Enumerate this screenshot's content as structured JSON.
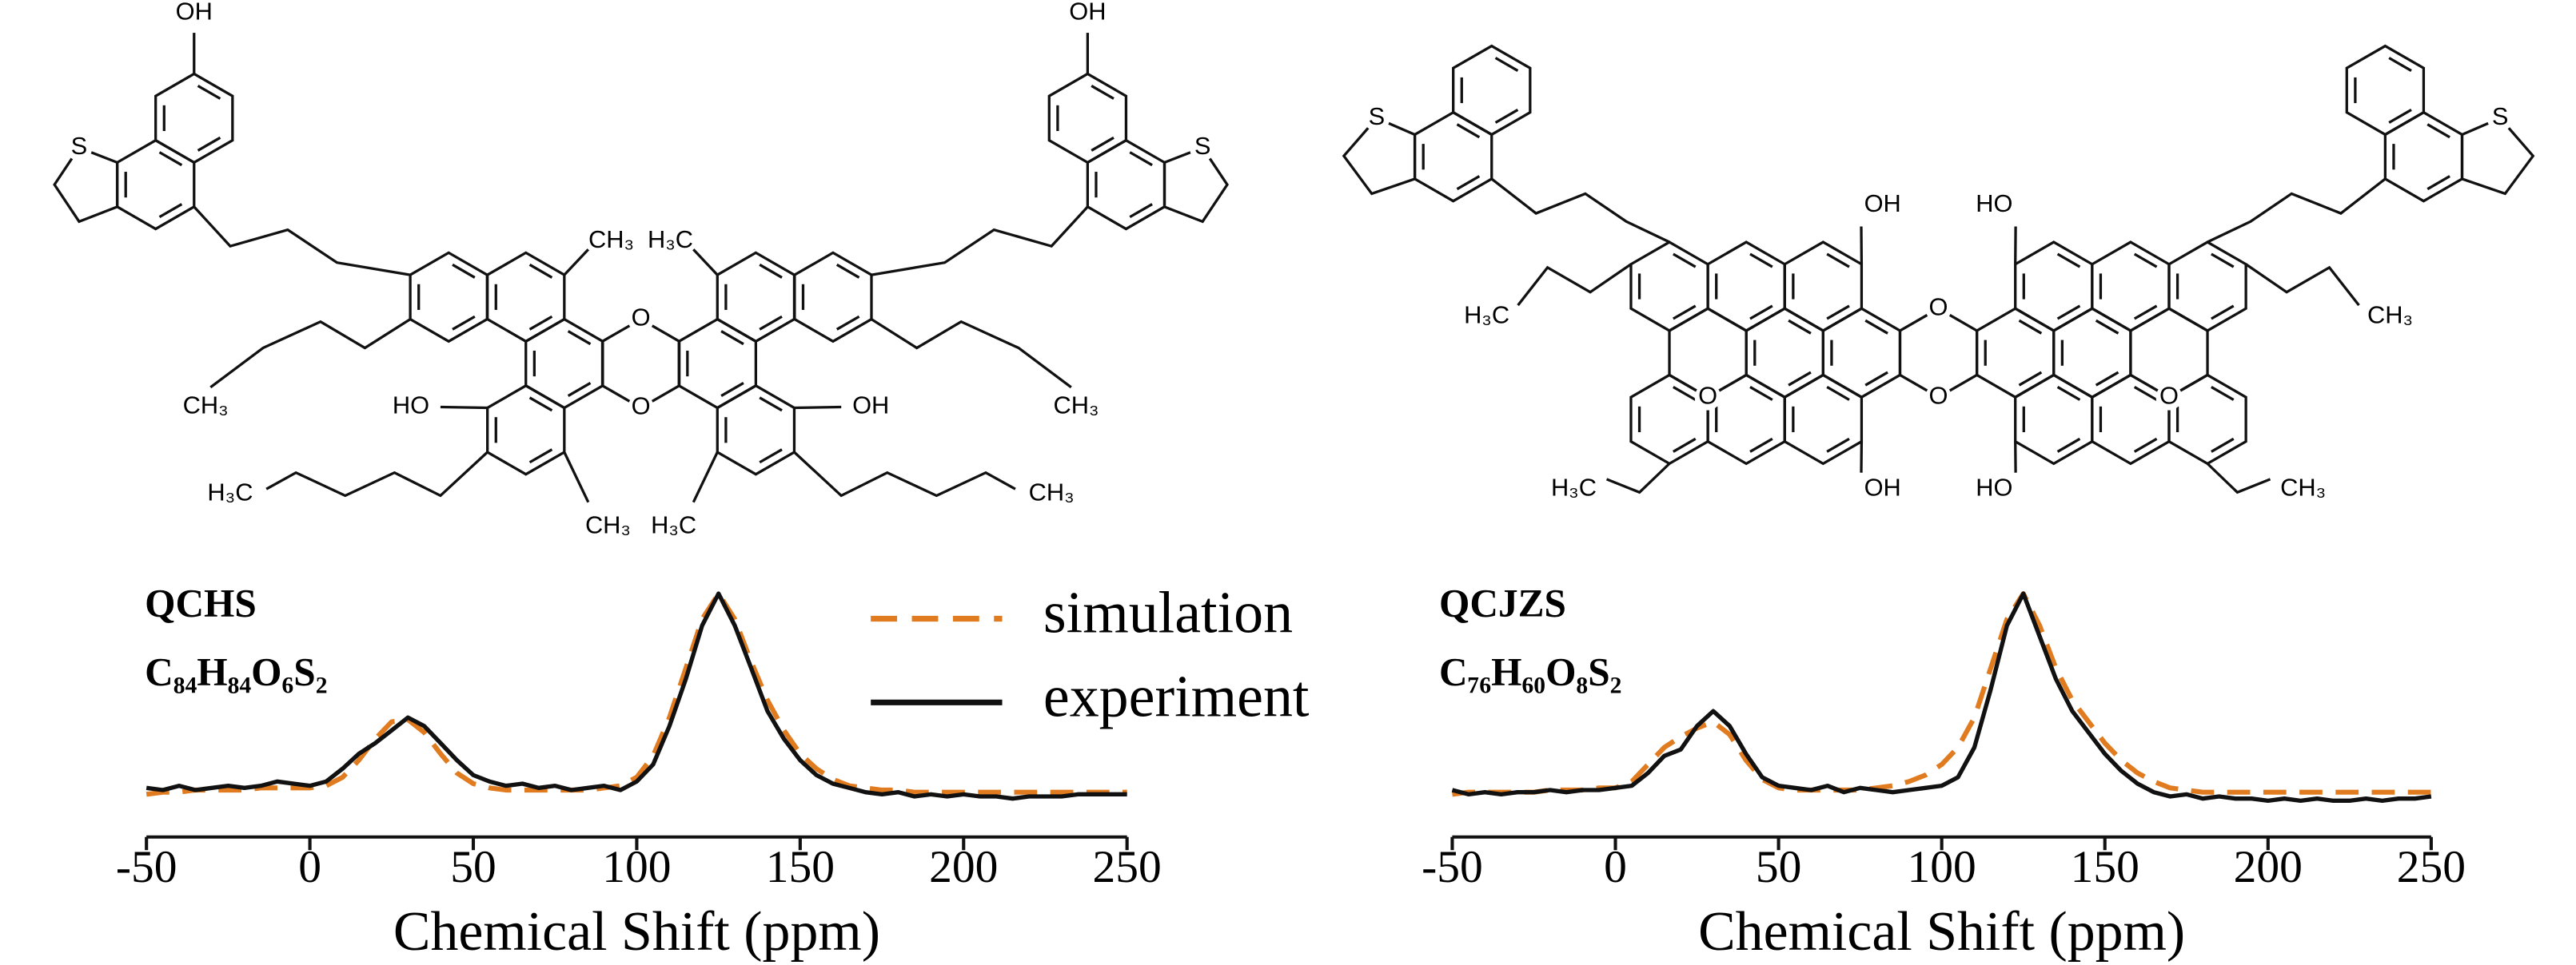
{
  "structures": [
    {
      "labels": [
        "OH",
        "S",
        "CH₃",
        "CH₃",
        "HO",
        "H₃C",
        "CH₃",
        "O",
        "O",
        "OH",
        "S",
        "CH₃",
        "H₃C",
        "OH",
        "CH₃",
        "H₃C"
      ]
    },
    {
      "labels": [
        "S",
        "H₃C",
        "H₃C",
        "OH",
        "OH",
        "O",
        "O",
        "O",
        "S",
        "CH₃",
        "CH₃",
        "HO",
        "HO",
        "O"
      ]
    }
  ],
  "chart_data": [
    {
      "type": "line",
      "title": "QCHS",
      "subtitle": "C₈₄H₈₄O₆S₂",
      "xlabel": "Chemical Shift (ppm)",
      "xlim": [
        -50,
        250
      ],
      "xticks": [
        -50,
        0,
        50,
        100,
        150,
        200,
        250
      ],
      "ylim": [
        -0.14,
        1.09
      ],
      "legend": "upper right",
      "x": [
        -50,
        -45,
        -40,
        -35,
        -30,
        -25,
        -20,
        -15,
        -10,
        -5,
        0,
        5,
        10,
        15,
        20,
        25,
        30,
        35,
        40,
        45,
        50,
        55,
        60,
        65,
        70,
        75,
        80,
        85,
        90,
        95,
        100,
        105,
        110,
        115,
        120,
        125,
        130,
        135,
        140,
        145,
        150,
        155,
        160,
        165,
        170,
        175,
        180,
        185,
        190,
        195,
        200,
        205,
        210,
        215,
        220,
        225,
        230,
        235,
        240,
        245,
        250
      ],
      "series": [
        {
          "name": "simulation",
          "color": "#e07b1f",
          "dashed": true,
          "values": [
            0.06,
            0.07,
            0.07,
            0.08,
            0.08,
            0.08,
            0.08,
            0.09,
            0.09,
            0.09,
            0.09,
            0.1,
            0.14,
            0.22,
            0.32,
            0.4,
            0.41,
            0.35,
            0.25,
            0.16,
            0.11,
            0.09,
            0.08,
            0.08,
            0.08,
            0.08,
            0.08,
            0.08,
            0.09,
            0.1,
            0.14,
            0.24,
            0.42,
            0.65,
            0.88,
            1.0,
            0.88,
            0.68,
            0.5,
            0.36,
            0.25,
            0.18,
            0.13,
            0.1,
            0.09,
            0.08,
            0.08,
            0.07,
            0.07,
            0.07,
            0.07,
            0.07,
            0.07,
            0.07,
            0.07,
            0.07,
            0.07,
            0.07,
            0.07,
            0.07,
            0.07
          ]
        },
        {
          "name": "experiment",
          "color": "#111111",
          "dashed": false,
          "values": [
            0.09,
            0.08,
            0.1,
            0.08,
            0.09,
            0.1,
            0.09,
            0.1,
            0.12,
            0.11,
            0.1,
            0.12,
            0.18,
            0.25,
            0.3,
            0.36,
            0.42,
            0.38,
            0.3,
            0.22,
            0.15,
            0.12,
            0.1,
            0.11,
            0.09,
            0.1,
            0.08,
            0.09,
            0.1,
            0.08,
            0.12,
            0.2,
            0.38,
            0.6,
            0.85,
            1.0,
            0.85,
            0.65,
            0.45,
            0.32,
            0.22,
            0.15,
            0.11,
            0.09,
            0.07,
            0.06,
            0.07,
            0.05,
            0.06,
            0.05,
            0.06,
            0.05,
            0.05,
            0.04,
            0.05,
            0.05,
            0.05,
            0.06,
            0.06,
            0.06,
            0.06
          ]
        }
      ]
    },
    {
      "type": "line",
      "title": "QCJZS",
      "subtitle": "C₇₆H₆₀O₈S₂",
      "xlabel": "Chemical Shift (ppm)",
      "xlim": [
        -50,
        250
      ],
      "xticks": [
        -50,
        0,
        50,
        100,
        150,
        200,
        250
      ],
      "ylim": [
        -0.14,
        1.09
      ],
      "x": [
        -50,
        -45,
        -40,
        -35,
        -30,
        -25,
        -20,
        -15,
        -10,
        -5,
        0,
        5,
        10,
        15,
        20,
        25,
        30,
        35,
        40,
        45,
        50,
        55,
        60,
        65,
        70,
        75,
        80,
        85,
        90,
        95,
        100,
        105,
        110,
        115,
        120,
        125,
        130,
        135,
        140,
        145,
        150,
        155,
        160,
        165,
        170,
        175,
        180,
        185,
        190,
        195,
        200,
        205,
        210,
        215,
        220,
        225,
        230,
        235,
        240,
        245,
        250
      ],
      "series": [
        {
          "color": "#e07b1f",
          "dashed": true,
          "values": [
            0.06,
            0.07,
            0.07,
            0.07,
            0.07,
            0.07,
            0.08,
            0.08,
            0.08,
            0.09,
            0.09,
            0.12,
            0.2,
            0.28,
            0.33,
            0.37,
            0.4,
            0.34,
            0.22,
            0.13,
            0.09,
            0.08,
            0.08,
            0.08,
            0.08,
            0.08,
            0.09,
            0.1,
            0.12,
            0.15,
            0.2,
            0.28,
            0.42,
            0.65,
            0.88,
            1.0,
            0.85,
            0.65,
            0.5,
            0.4,
            0.3,
            0.22,
            0.16,
            0.12,
            0.09,
            0.08,
            0.07,
            0.07,
            0.07,
            0.07,
            0.07,
            0.07,
            0.07,
            0.07,
            0.07,
            0.07,
            0.07,
            0.07,
            0.07,
            0.07,
            0.07
          ]
        },
        {
          "color": "#111111",
          "dashed": false,
          "values": [
            0.08,
            0.06,
            0.07,
            0.06,
            0.07,
            0.07,
            0.08,
            0.07,
            0.08,
            0.08,
            0.09,
            0.1,
            0.16,
            0.24,
            0.27,
            0.38,
            0.45,
            0.38,
            0.25,
            0.14,
            0.1,
            0.09,
            0.08,
            0.1,
            0.07,
            0.09,
            0.08,
            0.07,
            0.08,
            0.09,
            0.1,
            0.14,
            0.28,
            0.55,
            0.85,
            1.0,
            0.8,
            0.6,
            0.45,
            0.35,
            0.25,
            0.17,
            0.11,
            0.07,
            0.05,
            0.06,
            0.04,
            0.05,
            0.04,
            0.04,
            0.03,
            0.04,
            0.03,
            0.04,
            0.03,
            0.03,
            0.04,
            0.03,
            0.04,
            0.04,
            0.05
          ]
        }
      ]
    }
  ]
}
